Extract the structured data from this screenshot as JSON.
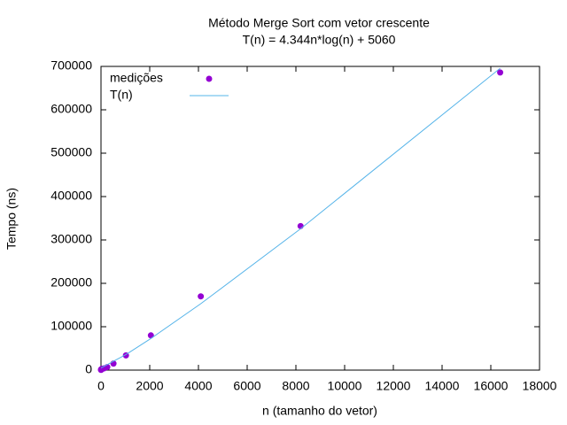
{
  "chart_data": {
    "type": "scatter",
    "title": "Método Merge Sort com vetor crescente",
    "subtitle": "T(n) = 4.344n*log(n) + 5060",
    "x_label": "n (tamanho do vetor)",
    "y_label": "Tempo (ns)",
    "xlim": [
      0,
      18000
    ],
    "xticks": [
      0,
      2000,
      4000,
      6000,
      8000,
      10000,
      12000,
      14000,
      16000,
      18000
    ],
    "ylim": [
      0,
      700000
    ],
    "yticks": [
      0,
      100000,
      200000,
      300000,
      400000,
      500000,
      600000,
      700000
    ],
    "legend": "top-left",
    "series": [
      {
        "name": "medições",
        "color": "#9400d3",
        "style": "points",
        "x": [
          2,
          4,
          8,
          16,
          32,
          64,
          128,
          256,
          512,
          1024,
          2048,
          4096,
          8192,
          16384
        ],
        "values": [
          500,
          1000,
          1500,
          2000,
          2500,
          3000,
          4000,
          7000,
          15000,
          34000,
          80000,
          170000,
          332000,
          686000
        ]
      },
      {
        "name": "T(n)",
        "color": "#56b4e9",
        "style": "line",
        "x": [
          2,
          1024,
          2048,
          4096,
          8192,
          16384
        ],
        "values": [
          5066,
          35892,
          72894,
          153065,
          325732,
          695714
        ]
      }
    ]
  }
}
